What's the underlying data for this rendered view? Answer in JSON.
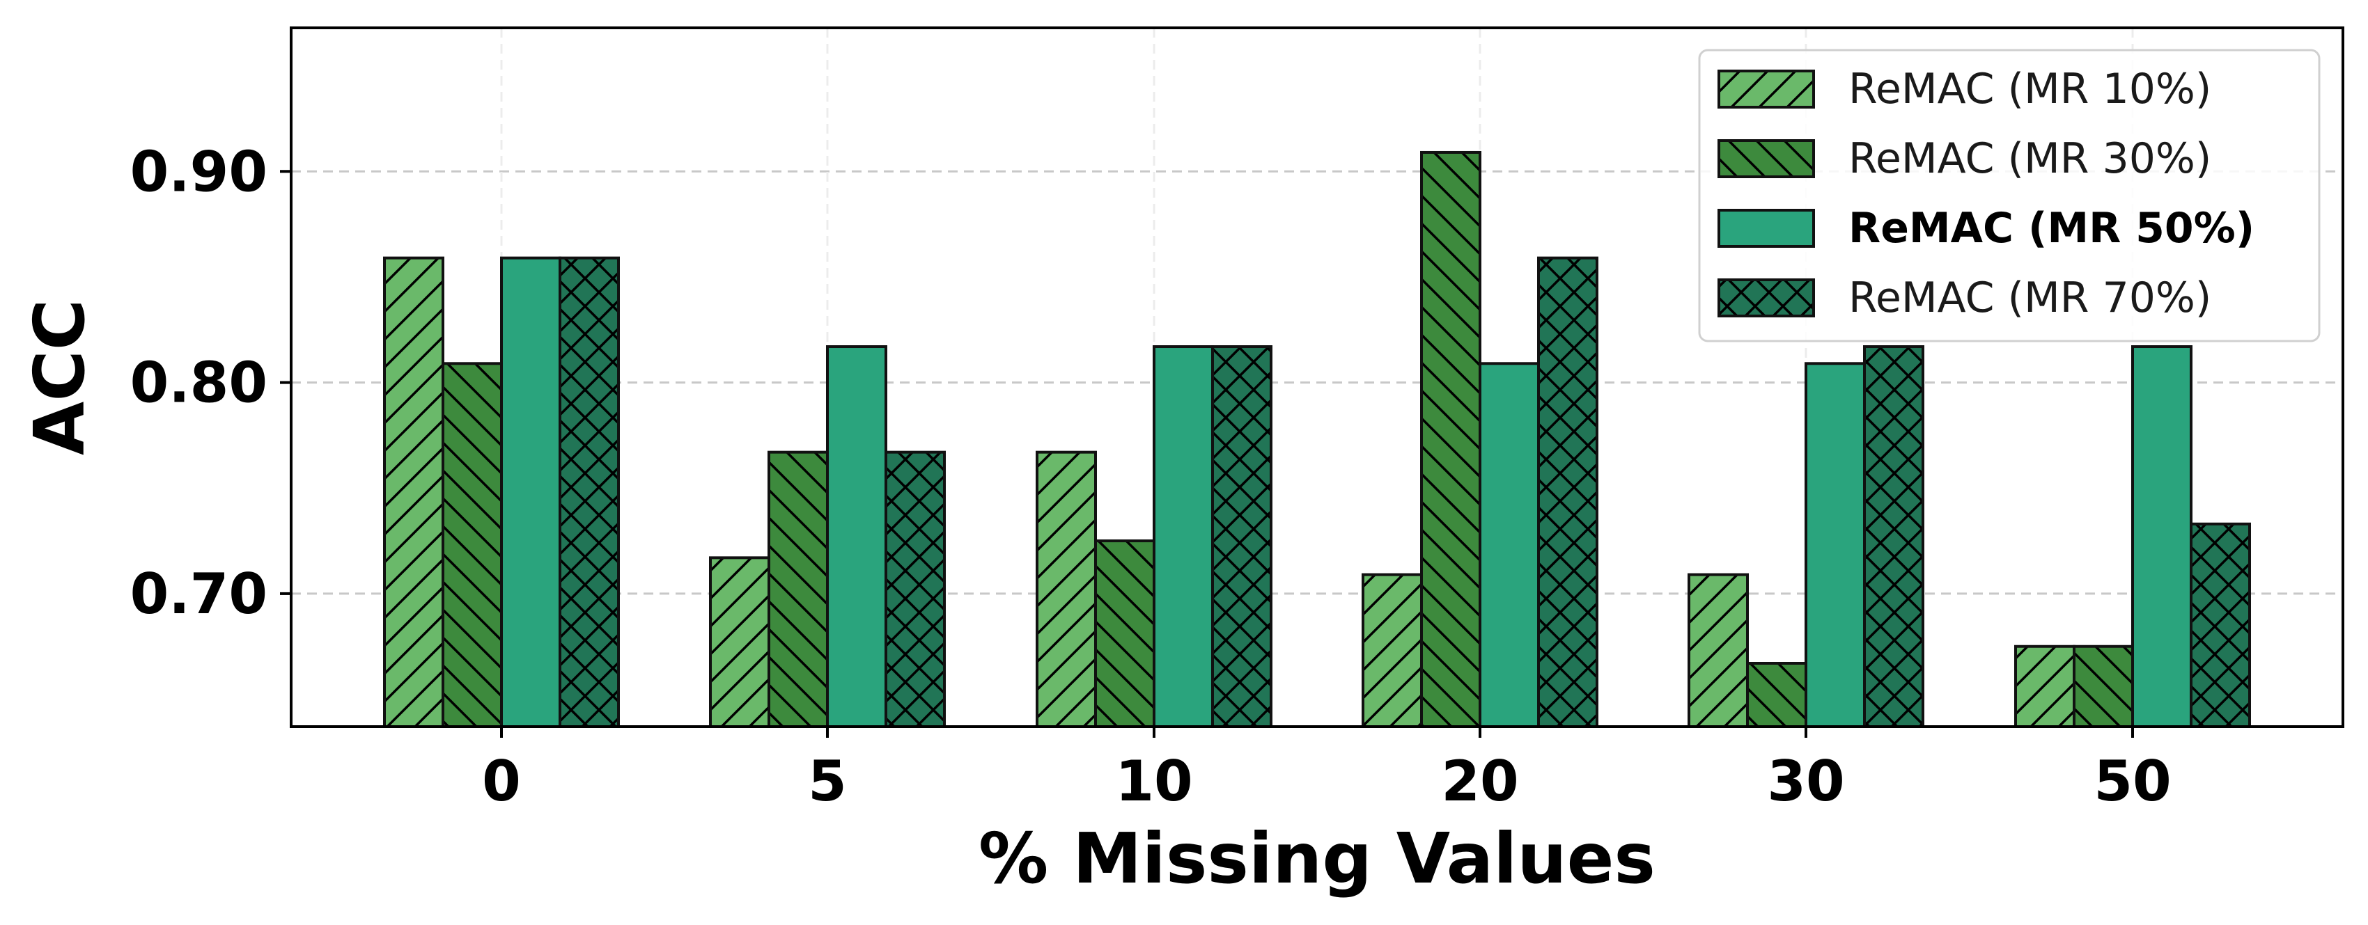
{
  "chart_data": {
    "type": "bar",
    "xlabel": "% Missing Values",
    "ylabel": "ACC",
    "categories": [
      "0",
      "5",
      "10",
      "20",
      "30",
      "50"
    ],
    "ylim": [
      0.637,
      0.968
    ],
    "yticks": [
      0.7,
      0.8,
      0.9
    ],
    "ytick_labels": [
      "0.70",
      "0.80",
      "0.90"
    ],
    "grid": true,
    "legend_position": "top-right",
    "series": [
      {
        "name": "ReMAC (MR 10%)",
        "values": [
          0.859,
          0.717,
          0.767,
          0.709,
          0.709,
          0.675
        ],
        "color": "#6ab96a",
        "hatch": "forward-diagonal",
        "bold": false
      },
      {
        "name": "ReMAC (MR 30%)",
        "values": [
          0.809,
          0.767,
          0.725,
          0.909,
          0.667,
          0.675
        ],
        "color": "#3d8a3d",
        "hatch": "back-diagonal",
        "bold": false
      },
      {
        "name": "ReMAC (MR 50%)",
        "values": [
          0.859,
          0.817,
          0.817,
          0.809,
          0.809,
          0.817
        ],
        "color": "#2aa47d",
        "hatch": "none",
        "bold": true
      },
      {
        "name": "ReMAC (MR 70%)",
        "values": [
          0.859,
          0.767,
          0.817,
          0.859,
          0.817,
          0.733
        ],
        "color": "#217556",
        "hatch": "cross",
        "bold": false
      }
    ]
  }
}
